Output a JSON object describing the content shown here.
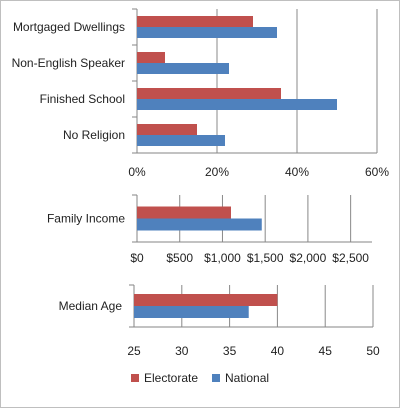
{
  "chart_data": [
    {
      "type": "bar",
      "orientation": "horizontal",
      "categories": [
        "Mortgaged Dwellings",
        "Non-English Speaker",
        "Finished School",
        "No Religion"
      ],
      "series": [
        {
          "name": "Electorate",
          "values": [
            29,
            7,
            36,
            15
          ]
        },
        {
          "name": "National",
          "values": [
            35,
            23,
            50,
            22
          ]
        }
      ],
      "xlim": [
        0,
        60
      ],
      "xticks": [
        0,
        20,
        40,
        60
      ],
      "tick_labels": [
        "0%",
        "20%",
        "40%",
        "60%"
      ],
      "grid": "vertical"
    },
    {
      "type": "bar",
      "orientation": "horizontal",
      "categories": [
        "Family Income"
      ],
      "series": [
        {
          "name": "Electorate",
          "values": [
            1100
          ]
        },
        {
          "name": "National",
          "values": [
            1460
          ]
        }
      ],
      "xlim": [
        0,
        2750
      ],
      "xticks": [
        0,
        500,
        1000,
        1500,
        2000,
        2500
      ],
      "tick_labels": [
        "$0",
        "$500",
        "$1,000",
        "$1,500",
        "$2,000",
        "$2,500"
      ],
      "grid": "vertical"
    },
    {
      "type": "bar",
      "orientation": "horizontal",
      "categories": [
        "Median Age"
      ],
      "series": [
        {
          "name": "Electorate",
          "values": [
            40
          ]
        },
        {
          "name": "National",
          "values": [
            37
          ]
        }
      ],
      "xlim": [
        25,
        50
      ],
      "xticks": [
        25,
        30,
        35,
        40,
        45,
        50
      ],
      "tick_labels": [
        "25",
        "30",
        "35",
        "40",
        "45",
        "50"
      ],
      "grid": "vertical"
    }
  ],
  "legend": {
    "position": "bottom",
    "items": [
      {
        "label": "Electorate",
        "color": "#c0504d"
      },
      {
        "label": "National",
        "color": "#4f81bd"
      }
    ]
  },
  "colors": {
    "electorate": "#c0504d",
    "national": "#4f81bd",
    "grid": "#888888",
    "axis": "#868686"
  }
}
